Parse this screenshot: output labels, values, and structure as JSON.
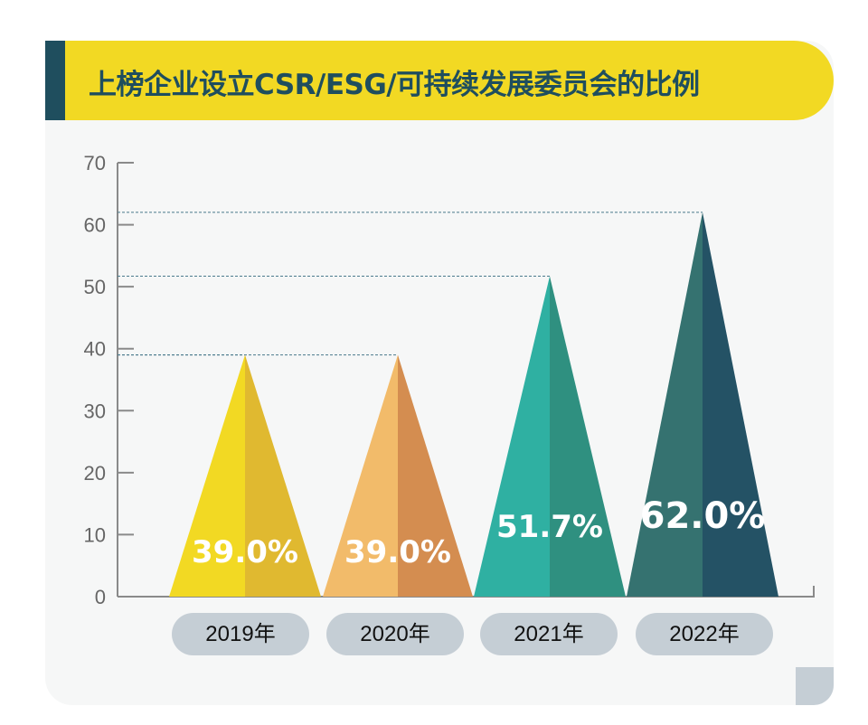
{
  "chart_data": {
    "type": "bar",
    "title": "上榜企业设立CSR/ESG/可持续发展委员会的比例",
    "categories": [
      "2019年",
      "2020年",
      "2021年",
      "2022年"
    ],
    "values": [
      39.0,
      39.0,
      51.7,
      62.0
    ],
    "data_labels": [
      "39.0%",
      "39.0%",
      "51.7%",
      "62.0%"
    ],
    "ylim": [
      0,
      70
    ],
    "yticks": [
      "0",
      "10",
      "20",
      "30",
      "40",
      "50",
      "60",
      "70"
    ],
    "grid": false,
    "colors": [
      [
        "#f2d923",
        "#e0b930"
      ],
      [
        "#f2bb6a",
        "#d48d50"
      ],
      [
        "#2fb0a2",
        "#2f9080"
      ],
      [
        "#357270",
        "#245265"
      ]
    ],
    "header_color": "#f2d923",
    "accent_color": "#1f4e5e"
  }
}
